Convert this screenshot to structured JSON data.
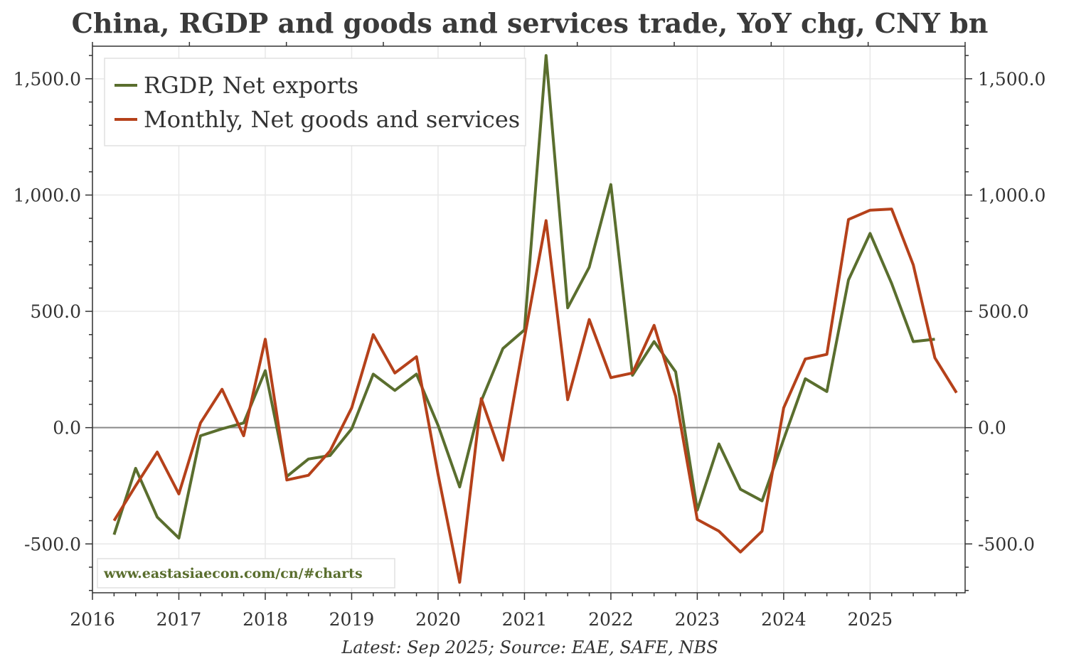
{
  "chart_data": {
    "type": "line",
    "title": "China, RGDP and goods and services trade, YoY chg, CNY bn",
    "footer": "Latest: Sep 2025; Source: EAE, SAFE, NBS",
    "watermark": "www.eastasiaecon.com/cn/#charts",
    "xlim": [
      2016,
      2026.1
    ],
    "ylim": [
      -710,
      1640
    ],
    "x_ticks": [
      2016,
      2017,
      2018,
      2019,
      2020,
      2021,
      2022,
      2023,
      2024,
      2025
    ],
    "x_tick_labels": [
      "2016",
      "2017",
      "2018",
      "2019",
      "2020",
      "2021",
      "2022",
      "2023",
      "2024",
      "2025"
    ],
    "y_ticks": [
      -500,
      0,
      500,
      1000,
      1500
    ],
    "y_tick_labels": [
      "-500.0",
      "0.0",
      "500.0",
      "1,000.0",
      "1,500.0"
    ],
    "zero_line": true,
    "grid": true,
    "legend_position": "top-left",
    "series": [
      {
        "name": "RGDP, Net exports",
        "color": "#5a6e2e",
        "x": [
          2016.25,
          2016.5,
          2016.75,
          2017.0,
          2017.25,
          2017.5,
          2017.75,
          2018.0,
          2018.25,
          2018.5,
          2018.75,
          2019.0,
          2019.25,
          2019.5,
          2019.75,
          2020.0,
          2020.25,
          2020.5,
          2020.75,
          2021.0,
          2021.25,
          2021.5,
          2021.75,
          2022.0,
          2022.25,
          2022.5,
          2022.75,
          2023.0,
          2023.25,
          2023.5,
          2023.75,
          2024.0,
          2024.25,
          2024.5,
          2024.75,
          2025.0,
          2025.25,
          2025.5,
          2025.75
        ],
        "values": [
          -460,
          -175,
          -385,
          -475,
          -35,
          -5,
          20,
          245,
          -210,
          -135,
          -120,
          -5,
          230,
          160,
          230,
          10,
          -255,
          115,
          340,
          420,
          1600,
          515,
          690,
          1045,
          225,
          370,
          240,
          -355,
          -70,
          -265,
          -315,
          -50,
          210,
          155,
          635,
          835,
          620,
          370,
          380
        ]
      },
      {
        "name": "Monthly, Net goods and services",
        "color": "#b5411a",
        "x": [
          2016.25,
          2016.5,
          2016.75,
          2017.0,
          2017.25,
          2017.5,
          2017.75,
          2018.0,
          2018.25,
          2018.5,
          2018.75,
          2019.0,
          2019.25,
          2019.5,
          2019.75,
          2020.0,
          2020.25,
          2020.5,
          2020.75,
          2021.0,
          2021.25,
          2021.5,
          2021.75,
          2022.0,
          2022.25,
          2022.5,
          2022.75,
          2023.0,
          2023.25,
          2023.5,
          2023.75,
          2024.0,
          2024.25,
          2024.5,
          2024.75,
          2025.0,
          2025.25,
          2025.5,
          2025.75,
          2026.0
        ],
        "values": [
          -400,
          -250,
          -105,
          -285,
          20,
          165,
          -35,
          380,
          -225,
          -205,
          -100,
          85,
          400,
          235,
          305,
          -200,
          -665,
          125,
          -140,
          385,
          890,
          120,
          465,
          215,
          235,
          440,
          135,
          -395,
          -445,
          -535,
          -445,
          85,
          295,
          315,
          895,
          935,
          940,
          700,
          300,
          150
        ]
      }
    ]
  }
}
